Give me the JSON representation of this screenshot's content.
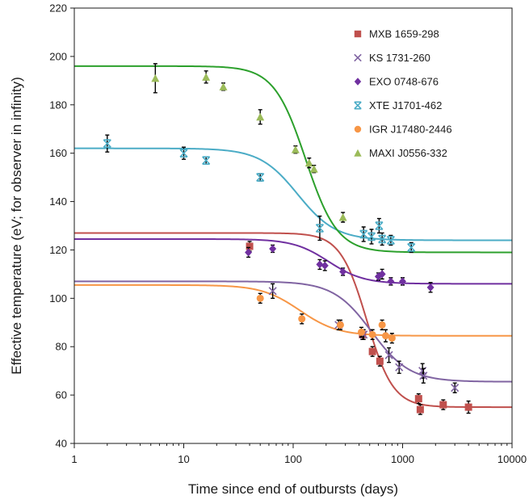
{
  "chart_data": {
    "type": "scatter",
    "xlabel": "Time since end of outbursts (days)",
    "ylabel": "Effective temperature (eV; for observer in infinity)",
    "xscale": "log",
    "xlim": [
      1,
      10000
    ],
    "ylim": [
      40,
      220
    ],
    "x_ticks": [
      "1",
      "10",
      "100",
      "1000",
      "10000"
    ],
    "y_ticks": [
      "40",
      "60",
      "80",
      "100",
      "120",
      "140",
      "160",
      "180",
      "200",
      "220"
    ],
    "grid": false,
    "legend_position": "top-right",
    "series": [
      {
        "name": "MXB 1659-298",
        "marker": "square",
        "color": "#c0504d",
        "points": [
          [
            40,
            121.5,
            2
          ],
          [
            430,
            85,
            2
          ],
          [
            530,
            78,
            2
          ],
          [
            620,
            74,
            2
          ],
          [
            1400,
            58.5,
            2
          ],
          [
            1450,
            54,
            2
          ],
          [
            2350,
            56,
            2
          ],
          [
            4000,
            55,
            2.5
          ]
        ],
        "fit": {
          "t0": 470,
          "a": 3.6,
          "top": 127,
          "bottom": 55
        }
      },
      {
        "name": "KS 1731-260",
        "marker": "x",
        "color": "#8064a2",
        "points": [
          [
            65,
            103,
            3
          ],
          [
            260,
            89,
            2
          ],
          [
            440,
            85,
            2
          ],
          [
            750,
            76.5,
            3
          ],
          [
            930,
            71.5,
            2.5
          ],
          [
            1520,
            70,
            3
          ],
          [
            1550,
            68,
            3
          ],
          [
            3000,
            63,
            2
          ]
        ],
        "fit": {
          "t0": 520,
          "a": 2.5,
          "top": 107,
          "bottom": 65.5
        }
      },
      {
        "name": "EXO 0748-676",
        "marker": "diamond",
        "color": "#7030a0",
        "points": [
          [
            39,
            119,
            2
          ],
          [
            65,
            120.5,
            1.5
          ],
          [
            175,
            114,
            2
          ],
          [
            195,
            113.5,
            2
          ],
          [
            285,
            111,
            1.5
          ],
          [
            600,
            109,
            1.5
          ],
          [
            650,
            110,
            2
          ],
          [
            780,
            107,
            1.5
          ],
          [
            1000,
            107,
            1.5
          ],
          [
            1800,
            104.5,
            2
          ]
        ],
        "fit": {
          "t0": 210,
          "a": 2.7,
          "top": 124.5,
          "bottom": 106
        }
      },
      {
        "name": "XTE J1701-462",
        "marker": "star",
        "color": "#4bacc6",
        "points": [
          [
            2,
            164,
            3.5
          ],
          [
            10,
            160,
            2.5
          ],
          [
            16,
            157,
            1.5
          ],
          [
            50,
            150,
            1.5
          ],
          [
            175,
            129,
            5
          ],
          [
            440,
            126.5,
            3
          ],
          [
            520,
            125.5,
            3
          ],
          [
            610,
            130,
            3
          ],
          [
            650,
            124.5,
            2.5
          ],
          [
            780,
            124,
            2
          ],
          [
            1200,
            121,
            2
          ]
        ],
        "fit": {
          "t0": 110,
          "a": 2.5,
          "top": 162,
          "bottom": 124
        }
      },
      {
        "name": "IGR J17480-2446",
        "marker": "circle",
        "color": "#f79646",
        "points": [
          [
            50,
            100,
            2
          ],
          [
            120,
            91.5,
            2
          ],
          [
            270,
            89,
            2
          ],
          [
            420,
            86,
            2
          ],
          [
            530,
            85,
            2
          ],
          [
            650,
            89,
            2
          ],
          [
            700,
            84.5,
            2.5
          ],
          [
            800,
            83.5,
            2
          ]
        ],
        "fit": {
          "t0": 115,
          "a": 2.5,
          "top": 105.5,
          "bottom": 84.5
        }
      },
      {
        "name": "MAXI J0556-332",
        "marker": "triangle",
        "color": "#9bbb59",
        "points": [
          [
            5.5,
            191,
            6
          ],
          [
            16,
            191.5,
            2.5
          ],
          [
            23,
            187.5,
            1.5
          ],
          [
            50,
            175,
            3
          ],
          [
            105,
            161.5,
            1.5
          ],
          [
            140,
            156,
            2
          ],
          [
            155,
            153.5,
            1.5
          ],
          [
            285,
            133.5,
            2
          ]
        ],
        "fit": {
          "t0": 130,
          "a": 3.0,
          "top": 196,
          "bottom": 119
        }
      }
    ],
    "fit_colors": [
      "#c0504d",
      "#8064a2",
      "#7030a0",
      "#4bacc6",
      "#f79646",
      "#2ca02c"
    ]
  }
}
